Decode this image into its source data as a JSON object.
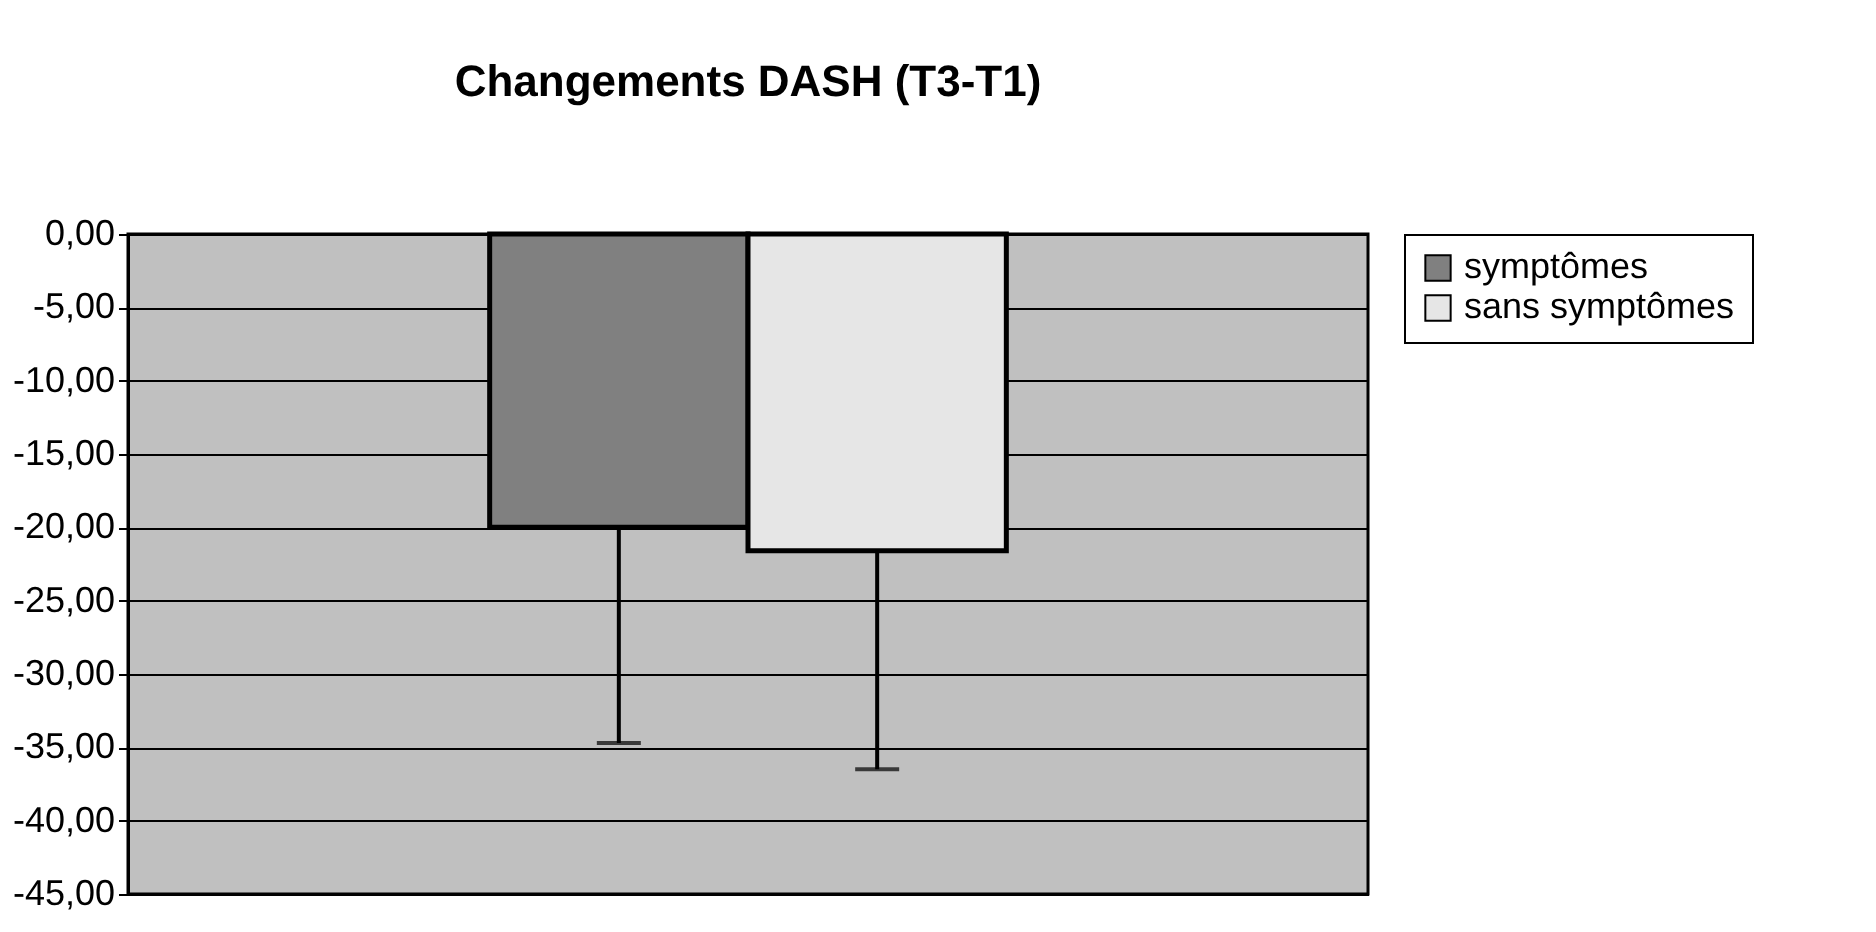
{
  "chart_data": {
    "type": "bar",
    "title": "Changements DASH (T3-T1)",
    "categories": [
      null
    ],
    "series": [
      {
        "name": "symptômes",
        "color": "#808080",
        "values": [
          -20.0
        ],
        "errors": [
          [
            -34.7,
            -20.0
          ]
        ]
      },
      {
        "name": "sans symptômes",
        "color": "#e6e6e6",
        "values": [
          -21.6
        ],
        "errors": [
          [
            -36.5,
            -21.6
          ]
        ]
      }
    ],
    "ylim": [
      -45,
      0
    ],
    "yticks": [
      {
        "value": 0,
        "label": "0,00"
      },
      {
        "value": -5,
        "label": "-5,00"
      },
      {
        "value": -10,
        "label": "-10,00"
      },
      {
        "value": -15,
        "label": "-15,00"
      },
      {
        "value": -20,
        "label": "-20,00"
      },
      {
        "value": -25,
        "label": "-25,00"
      },
      {
        "value": -30,
        "label": "-30,00"
      },
      {
        "value": -35,
        "label": "-35,00"
      },
      {
        "value": -40,
        "label": "-40,00"
      },
      {
        "value": -45,
        "label": "-45,00"
      }
    ],
    "grid": "y",
    "legend": "right",
    "tick_labels": "y"
  }
}
